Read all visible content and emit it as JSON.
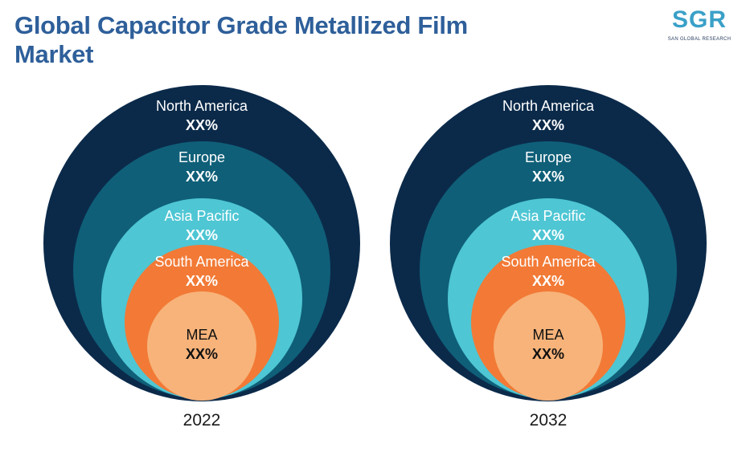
{
  "title": "Global Capacitor Grade Metallized Film Market",
  "logo": {
    "text": "SGR",
    "subtitle": "SAN GLOBAL RESEARCH"
  },
  "colors": {
    "north_america": "#0b2a4a",
    "europe": "#0f5f78",
    "asia_pacific": "#4ec6d4",
    "south_america": "#f27a36",
    "mea": "#f7b37a",
    "title": "#2e5f9a",
    "logo": "#3aa0c8"
  },
  "diagrams": [
    {
      "year": "2022",
      "regions": [
        {
          "name": "North America",
          "value": "XX%"
        },
        {
          "name": "Europe",
          "value": "XX%"
        },
        {
          "name": "Asia Pacific",
          "value": "XX%"
        },
        {
          "name": "South America",
          "value": "XX%"
        },
        {
          "name": "MEA",
          "value": "XX%"
        }
      ]
    },
    {
      "year": "2032",
      "regions": [
        {
          "name": "North America",
          "value": "XX%"
        },
        {
          "name": "Europe",
          "value": "XX%"
        },
        {
          "name": "Asia Pacific",
          "value": "XX%"
        },
        {
          "name": "South America",
          "value": "XX%"
        },
        {
          "name": "MEA",
          "value": "XX%"
        }
      ]
    }
  ]
}
